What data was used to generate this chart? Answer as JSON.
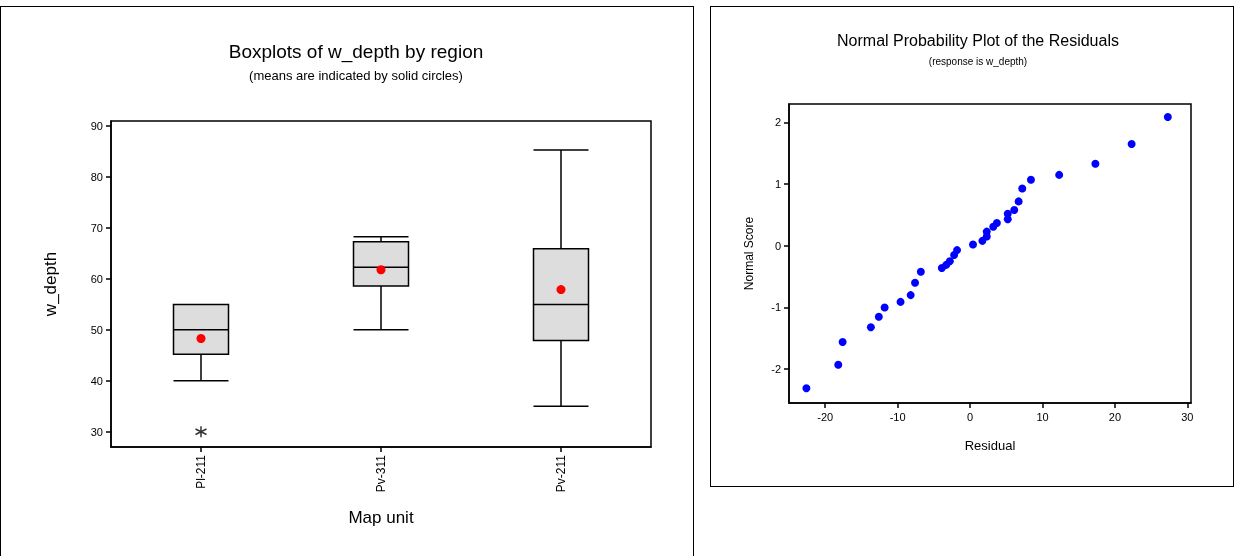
{
  "chart_data": [
    {
      "type": "box",
      "title": "Boxplots of w_depth by region",
      "subtitle": "(means are indicated by solid circles)",
      "xlabel": "Map unit",
      "ylabel": "w_depth",
      "categories": [
        "Pl-211",
        "Pv-311",
        "Pv-211"
      ],
      "ylim": [
        27,
        91
      ],
      "yticks": [
        30,
        40,
        50,
        60,
        70,
        80,
        90
      ],
      "grid": false,
      "series": [
        {
          "color": "#dddddd",
          "boxes": [
            {
              "low": 40,
              "q1": 45.2,
              "median": 50,
              "q3": 55,
              "high": 55,
              "mean": 48.3,
              "outliers": [
                30
              ]
            },
            {
              "low": 50,
              "q1": 58.6,
              "median": 62.3,
              "q3": 67.3,
              "high": 68.3,
              "mean": 61.8
            },
            {
              "low": 35,
              "q1": 47.9,
              "median": 55,
              "q3": 65.9,
              "high": 85.3,
              "mean": 57.9
            }
          ]
        }
      ]
    },
    {
      "type": "scatter",
      "title": "Normal Probability Plot of the Residuals",
      "subtitle": "(response is w_depth)",
      "xlabel": "Residual",
      "ylabel": "Normal Score",
      "xlim": [
        -25,
        30.5
      ],
      "ylim": [
        -2.55,
        2.3
      ],
      "xticks": [
        -20,
        -10,
        0,
        10,
        20,
        30
      ],
      "yticks": [
        -2,
        -1,
        0,
        1,
        2
      ],
      "grid": false,
      "marker": "circle",
      "x": [
        -22.6,
        -18.2,
        -17.6,
        -13.7,
        -12.6,
        -11.8,
        -9.6,
        -8.2,
        -7.6,
        -6.8,
        -3.9,
        -3.3,
        -2.8,
        -2.2,
        -1.8,
        0.4,
        1.7,
        2.3,
        2.3,
        3.2,
        3.7,
        5.2,
        5.2,
        6.1,
        6.7,
        7.2,
        8.4,
        12.3,
        17.3,
        22.3,
        27.3
      ],
      "series": [
        {
          "color": "#0000ff",
          "values": [
            -2.31,
            -1.93,
            -1.56,
            -1.32,
            -1.15,
            -1.0,
            -0.91,
            -0.8,
            -0.6,
            -0.42,
            -0.36,
            -0.31,
            -0.25,
            -0.15,
            -0.07,
            0.02,
            0.08,
            0.15,
            0.23,
            0.31,
            0.37,
            0.43,
            0.52,
            0.58,
            0.72,
            0.93,
            1.07,
            1.15,
            1.33,
            1.65,
            2.09
          ]
        }
      ]
    }
  ]
}
